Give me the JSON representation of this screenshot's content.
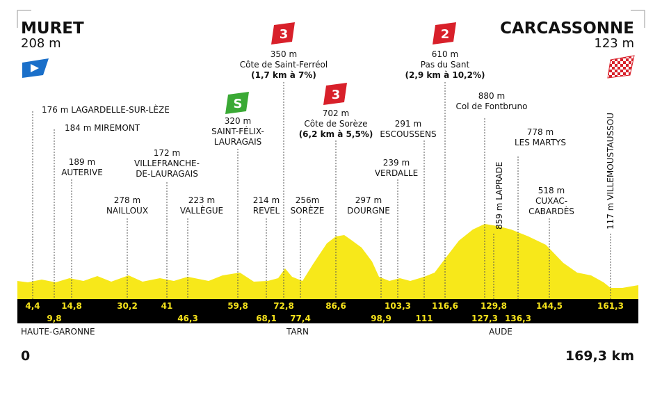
{
  "start": {
    "name": "MURET",
    "altitude": "208 m"
  },
  "finish": {
    "name": "CARCASSONNE",
    "altitude": "123 m"
  },
  "points": [
    {
      "lines": [
        "176 m LAGARDELLE-SUR-LÈZE"
      ]
    },
    {
      "lines": [
        "184 m MIREMONT"
      ]
    },
    {
      "lines": [
        "189 m",
        "AUTERIVE"
      ]
    },
    {
      "lines": [
        "278 m",
        "NAILLOUX"
      ]
    },
    {
      "lines": [
        "172 m",
        "VILLEFRANCHE-",
        "DE-LAURAGAIS"
      ]
    },
    {
      "lines": [
        "223 m",
        "VALLÈGUE"
      ]
    },
    {
      "lines": [
        "320 m",
        "SAINT-FÉLIX-",
        "LAURAGAIS"
      ],
      "badge": "S"
    },
    {
      "lines": [
        "350 m",
        "Côte de Saint-Ferréol",
        "(1,7 km à 7%)"
      ],
      "badge": "3"
    },
    {
      "lines": [
        "214 m",
        "REVEL"
      ]
    },
    {
      "lines": [
        "256m",
        "SORÈZE"
      ]
    },
    {
      "lines": [
        "702 m",
        "Côte de Sorèze",
        "(6,2 km à 5,5%)"
      ],
      "badge": "3"
    },
    {
      "lines": [
        "297 m",
        "DOURGNE"
      ]
    },
    {
      "lines": [
        "291 m",
        "ESCOUSSENS"
      ]
    },
    {
      "lines": [
        "239 m",
        "VERDALLE"
      ]
    },
    {
      "lines": [
        "610 m",
        "Pas du Sant",
        "(2,9 km à 10,2%)"
      ],
      "badge": "2"
    },
    {
      "lines": [
        "880 m",
        "Col de Fontbruno"
      ]
    },
    {
      "lines": [
        "859 m LAPRADE"
      ]
    },
    {
      "lines": [
        "778 m",
        "LES MARTYS"
      ]
    },
    {
      "lines": [
        "518 m",
        "CUXAC-",
        "CABARDÈS"
      ]
    },
    {
      "lines": [
        "117 m VILLEMOUSTAUSSOU"
      ]
    }
  ],
  "km_marks": [
    "4,4",
    "9,8",
    "14,8",
    "30,2",
    "41",
    "46,3",
    "59,8",
    "68,1",
    "72,8",
    "77,4",
    "86,6",
    "98,9",
    "103,3",
    "111",
    "116,6",
    "127,3",
    "129,8",
    "136,3",
    "144,5",
    "161,3"
  ],
  "regions": [
    "HAUTE-GARONNE",
    "TARN",
    "AUDE"
  ],
  "distance": {
    "start": "0",
    "end": "169,3 km"
  }
}
